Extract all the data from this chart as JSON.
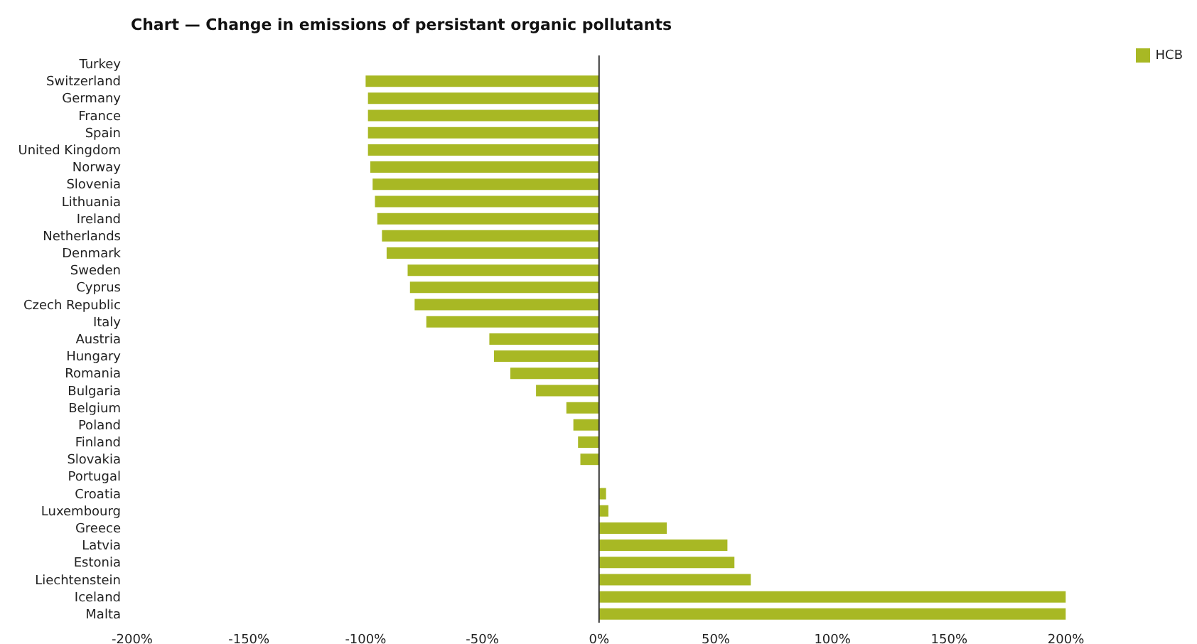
{
  "chart_data": {
    "type": "bar",
    "orientation": "horizontal",
    "title": "Chart — Change in emissions of persistant organic pollutants",
    "categories": [
      "Turkey",
      "Switzerland",
      "Germany",
      "France",
      "Spain",
      "United Kingdom",
      "Norway",
      "Slovenia",
      "Lithuania",
      "Ireland",
      "Netherlands",
      "Denmark",
      "Sweden",
      "Cyprus",
      "Czech Republic",
      "Italy",
      "Austria",
      "Hungary",
      "Romania",
      "Bulgaria",
      "Belgium",
      "Poland",
      "Finland",
      "Slovakia",
      "Portugal",
      "Croatia",
      "Luxembourg",
      "Greece",
      "Latvia",
      "Estonia",
      "Liechtenstein",
      "Iceland",
      "Malta"
    ],
    "series": [
      {
        "name": "HCB",
        "color": "#a8b824",
        "values": [
          null,
          -100,
          -99,
          -99,
          -99,
          -99,
          -98,
          -97,
          -96,
          -95,
          -93,
          -91,
          -82,
          -81,
          -79,
          -74,
          -47,
          -45,
          -38,
          -27,
          -14,
          -11,
          -9,
          -8,
          null,
          3,
          4,
          29,
          55,
          58,
          65,
          200,
          200
        ]
      }
    ],
    "xlim": [
      -200,
      200
    ],
    "xticks": [
      {
        "value": -200,
        "label": "-200%"
      },
      {
        "value": -150,
        "label": "-150%"
      },
      {
        "value": -100,
        "label": "-100%"
      },
      {
        "value": -50,
        "label": "-50%"
      },
      {
        "value": 0,
        "label": "0%"
      },
      {
        "value": 50,
        "label": "50%"
      },
      {
        "value": 100,
        "label": "100%"
      },
      {
        "value": 150,
        "label": "150%"
      },
      {
        "value": 200,
        "label": "200%"
      }
    ],
    "ref_lines": [
      {
        "axis": "x",
        "value": 0,
        "color": "#333333"
      }
    ],
    "legend": "top right",
    "grid": false
  }
}
